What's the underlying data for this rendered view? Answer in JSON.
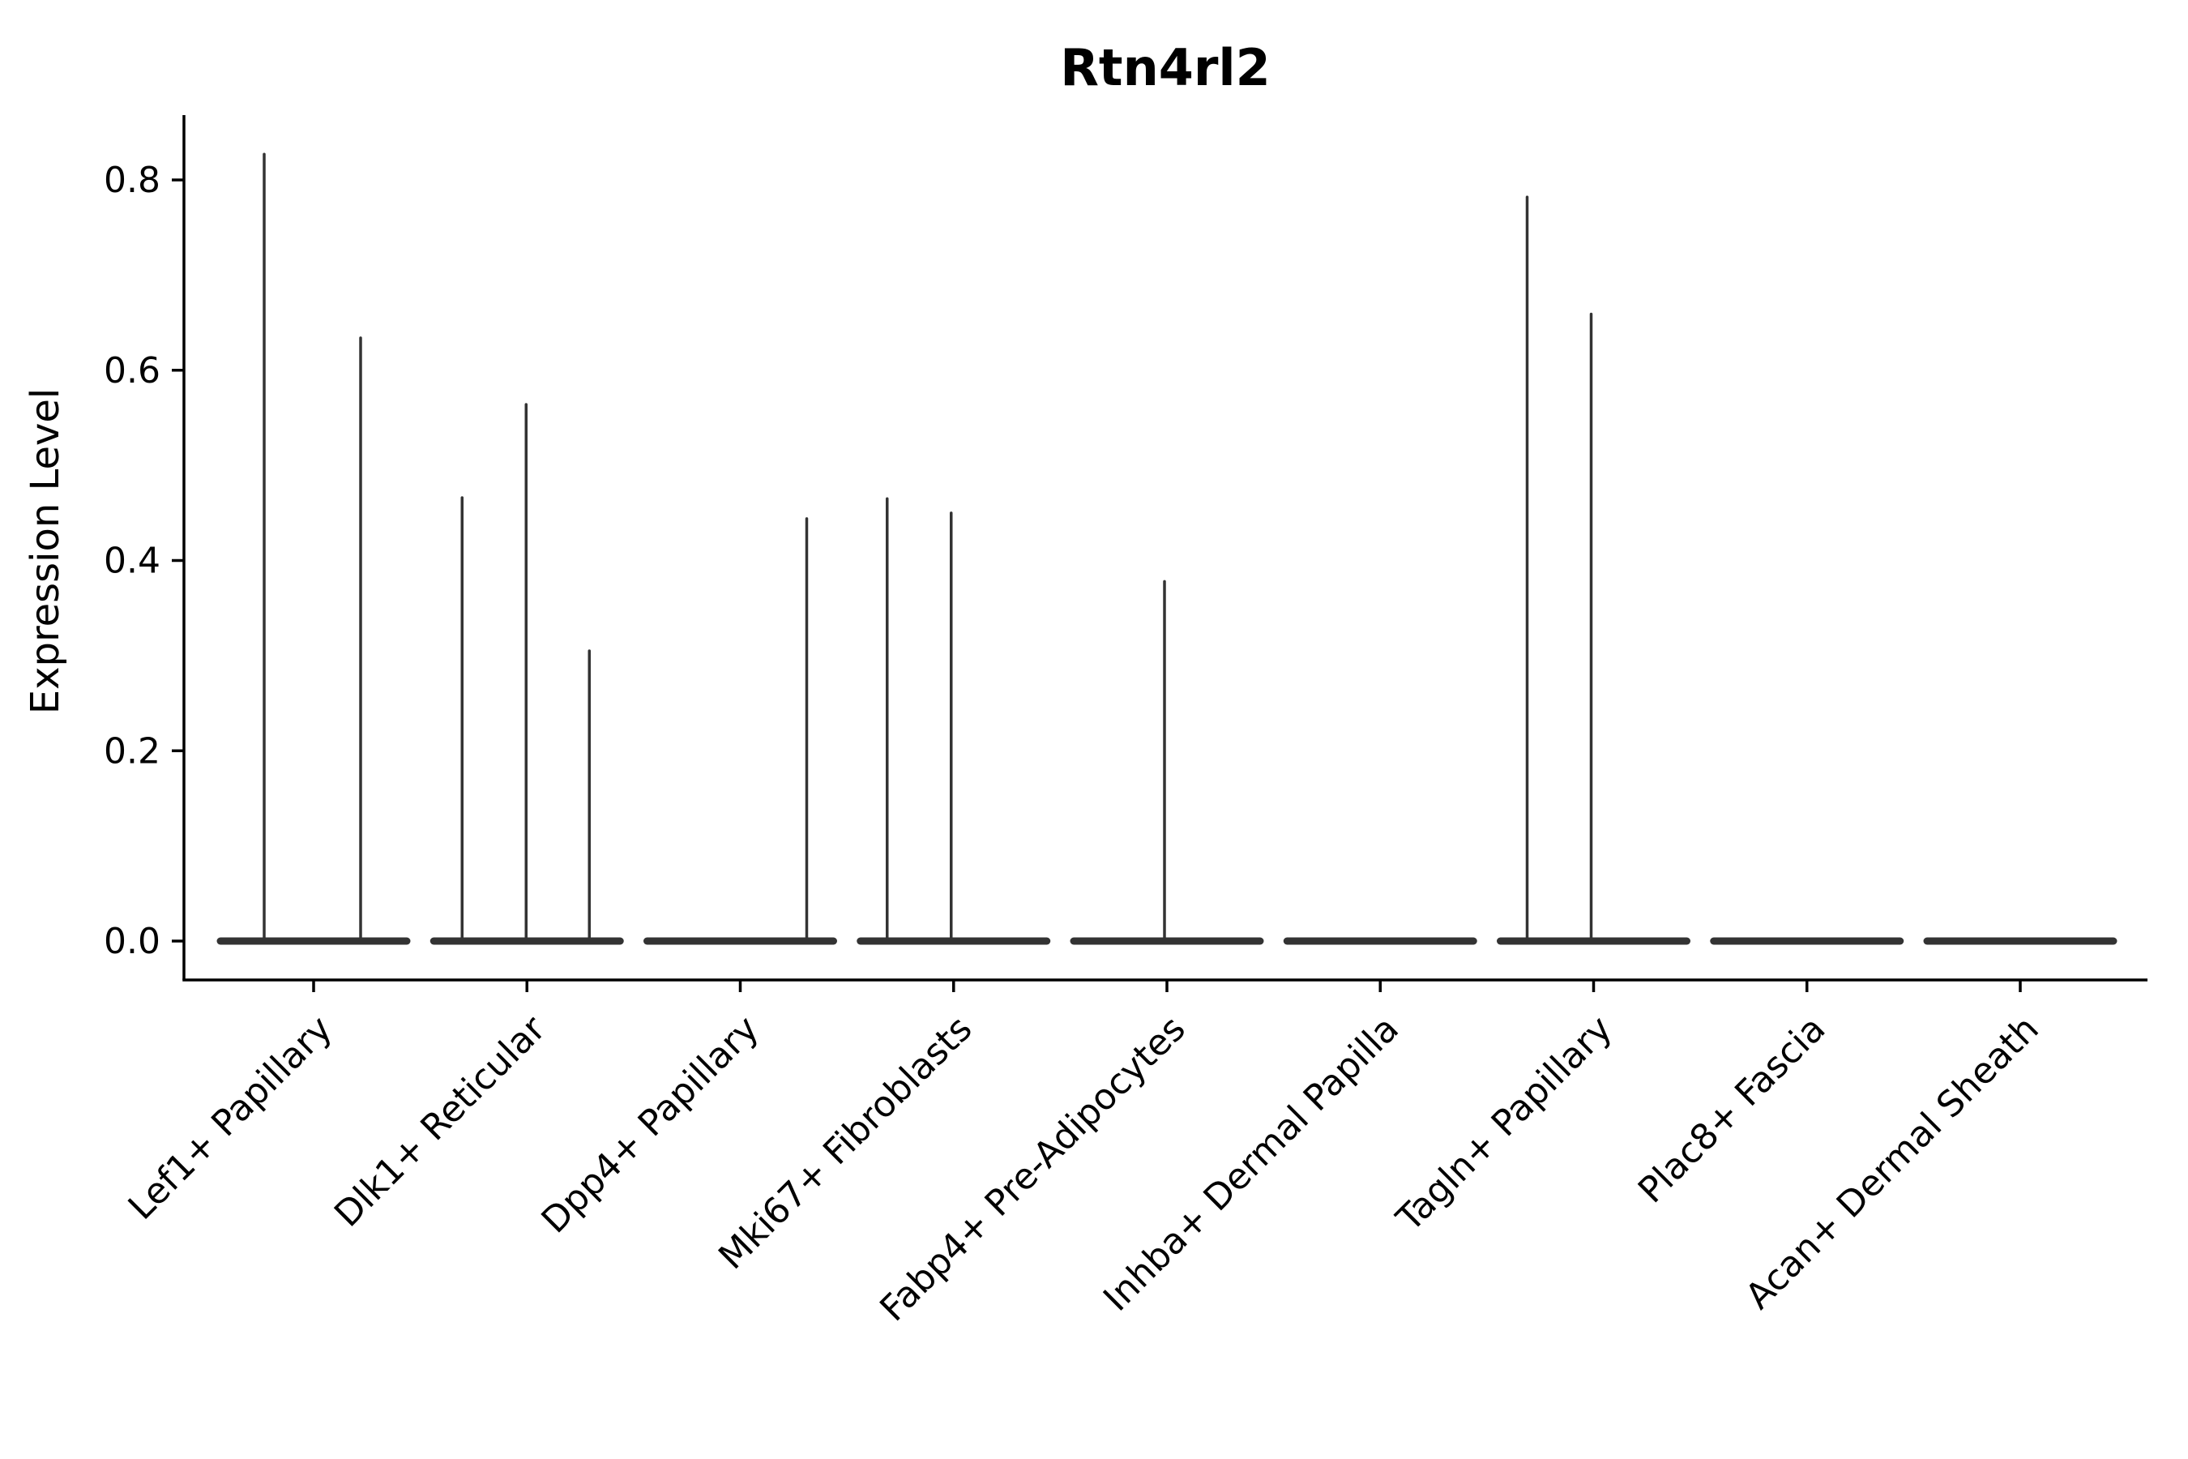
{
  "chart_data": {
    "type": "violin",
    "title": "Rtn4rl2",
    "ylabel": "Expression Level",
    "xlabel": "",
    "grid": false,
    "legend": null,
    "y_ticks": [
      "0.0",
      "0.2",
      "0.4",
      "0.6",
      "0.8"
    ],
    "y_tick_values": [
      0.0,
      0.2,
      0.4,
      0.6,
      0.8
    ],
    "ylim": [
      -0.042,
      0.866
    ],
    "categories": [
      "Lef1+ Papillary",
      "Dlk1+ Reticular",
      "Dpp4+ Papillary",
      "Mki67+ Fibroblasts",
      "Fabp4+ Pre-Adipocytes",
      "Inhba+ Dermal Papilla",
      "Tagln+ Papillary",
      "Plac8+ Fascia",
      "Acan+ Dermal Sheath"
    ],
    "violins": [
      {
        "category": "Lef1+ Papillary",
        "baseline_value": 0.0,
        "spikes": [
          {
            "x_offset": -61,
            "max": 0.827
          },
          {
            "x_offset": 58,
            "max": 0.634
          }
        ]
      },
      {
        "category": "Dlk1+ Reticular",
        "baseline_value": 0.0,
        "spikes": [
          {
            "x_offset": -80,
            "max": 0.466
          },
          {
            "x_offset": -1,
            "max": 0.564
          },
          {
            "x_offset": 77,
            "max": 0.305
          }
        ]
      },
      {
        "category": "Dpp4+ Papillary",
        "baseline_value": 0.0,
        "spikes": [
          {
            "x_offset": 82,
            "max": 0.444
          }
        ]
      },
      {
        "category": "Mki67+ Fibroblasts",
        "baseline_value": 0.0,
        "spikes": [
          {
            "x_offset": -82,
            "max": 0.465
          },
          {
            "x_offset": -3,
            "max": 0.45
          }
        ]
      },
      {
        "category": "Fabp4+ Pre-Adipocytes",
        "baseline_value": 0.0,
        "spikes": [
          {
            "x_offset": -3,
            "max": 0.378
          }
        ]
      },
      {
        "category": "Inhba+ Dermal Papilla",
        "baseline_value": 0.0,
        "spikes": []
      },
      {
        "category": "Tagln+ Papillary",
        "baseline_value": 0.0,
        "spikes": [
          {
            "x_offset": -82,
            "max": 0.782
          },
          {
            "x_offset": -3,
            "max": 0.659
          }
        ]
      },
      {
        "category": "Plac8+ Fascia",
        "baseline_value": 0.0,
        "spikes": []
      },
      {
        "category": "Acan+ Dermal Sheath",
        "baseline_value": 0.0,
        "spikes": []
      }
    ],
    "colors": {
      "violin": "#333333",
      "axis": "#000000",
      "text": "#000000",
      "background": "#ffffff"
    }
  }
}
